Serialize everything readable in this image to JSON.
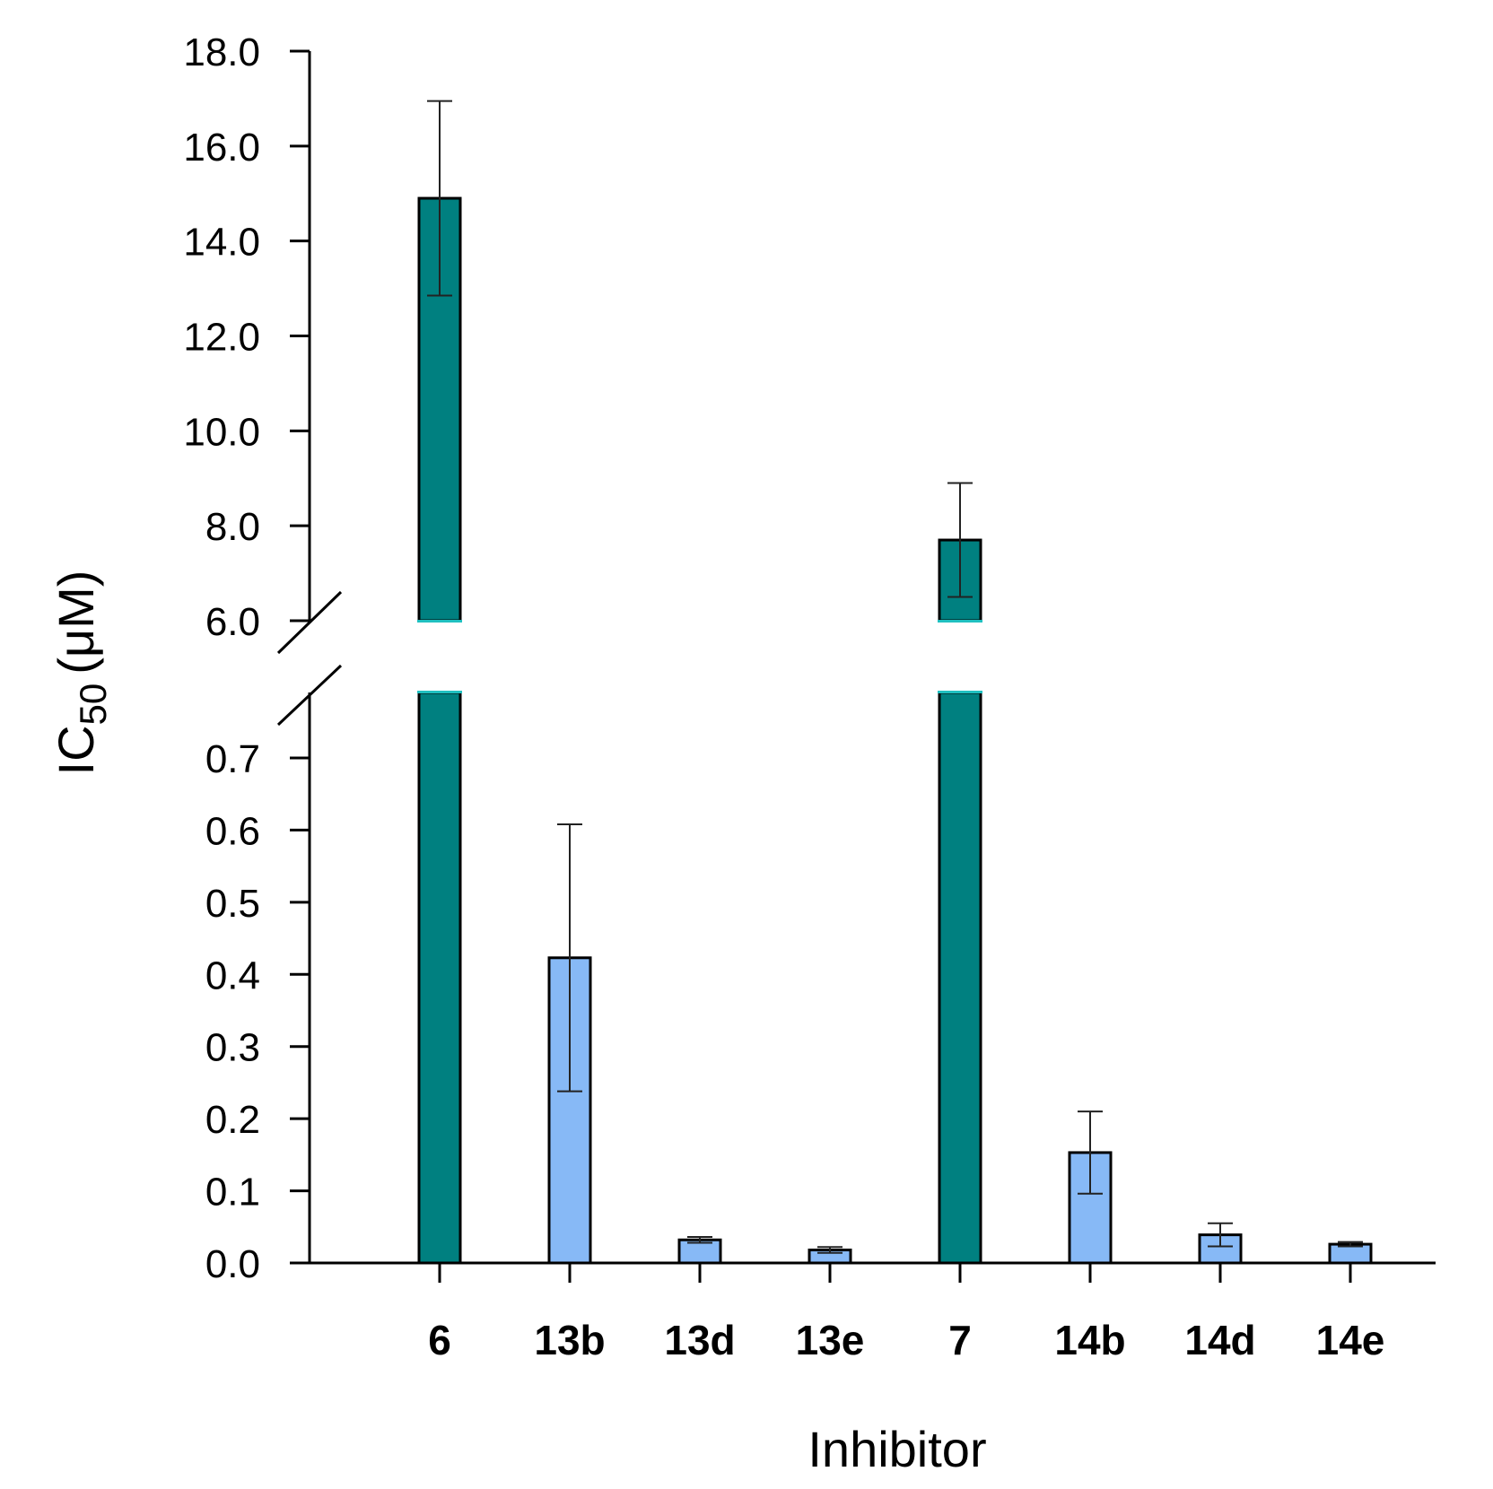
{
  "chart_data": {
    "type": "bar",
    "title": "",
    "xlabel": "Inhibitor",
    "ylabel": {
      "main": "IC",
      "sub": "50",
      "unit": "(μM)"
    },
    "axis_break": true,
    "upper_segment": {
      "ylim": [
        6.0,
        18.0
      ],
      "ticks": [
        "18.0",
        "16.0",
        "14.0",
        "12.0",
        "10.0",
        "8.0",
        "6.0"
      ]
    },
    "lower_segment": {
      "ylim": [
        0.0,
        0.77
      ],
      "ticks": [
        "0.7",
        "0.6",
        "0.5",
        "0.4",
        "0.3",
        "0.2",
        "0.1",
        "0.0"
      ]
    },
    "categories": [
      "6",
      "13b",
      "13d",
      "13e",
      "7",
      "14b",
      "14d",
      "14e"
    ],
    "values": [
      14.9,
      0.423,
      0.032,
      0.018,
      7.7,
      0.153,
      0.039,
      0.026
    ],
    "errors": [
      2.05,
      0.185,
      0.004,
      0.004,
      1.2,
      0.057,
      0.016,
      0.003
    ],
    "colors": [
      "#008080",
      "#87b9f6",
      "#87b9f6",
      "#87b9f6",
      "#008080",
      "#87b9f6",
      "#87b9f6",
      "#87b9f6"
    ],
    "grid": false,
    "legend": "none"
  }
}
